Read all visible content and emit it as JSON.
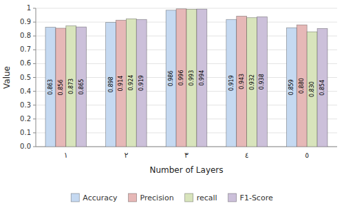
{
  "chart_data": {
    "type": "bar",
    "xlabel": "Number of Layers",
    "ylabel": "Value",
    "categories": [
      "١",
      "٢",
      "٣",
      "٤",
      "٥"
    ],
    "series": [
      {
        "name": "Accuracy",
        "color": "#c5d9f1",
        "values": [
          0.863,
          0.898,
          0.986,
          0.919,
          0.859
        ],
        "value_labels": [
          "0.863",
          "0.898",
          "0.986",
          "0.919",
          "0.859"
        ]
      },
      {
        "name": "Precision",
        "color": "#e6b8b7",
        "values": [
          0.856,
          0.914,
          0.996,
          0.943,
          0.88
        ],
        "value_labels": [
          "0.856",
          "0.914",
          "0.996",
          "0.943",
          "0.880"
        ]
      },
      {
        "name": "recall",
        "color": "#d8e4bc",
        "values": [
          0.873,
          0.924,
          0.993,
          0.932,
          0.83
        ],
        "value_labels": [
          "0.873",
          "0.924",
          "0.993",
          "0.932",
          "0.830"
        ]
      },
      {
        "name": "F1-Score",
        "color": "#ccc0da",
        "values": [
          0.865,
          0.919,
          0.994,
          0.938,
          0.854
        ],
        "value_labels": [
          "0.865",
          "0.919",
          "0.994",
          "0.938",
          "0.854"
        ]
      }
    ],
    "ylim": [
      0,
      1.0
    ],
    "yticks": [
      {
        "value": 0,
        "label": "0.0"
      },
      0.1,
      0.2,
      0.3,
      0.4,
      0.5,
      0.6,
      0.7,
      0.8,
      0.9,
      1
    ],
    "grid": true,
    "legend": "bottom",
    "data_labels": true
  }
}
